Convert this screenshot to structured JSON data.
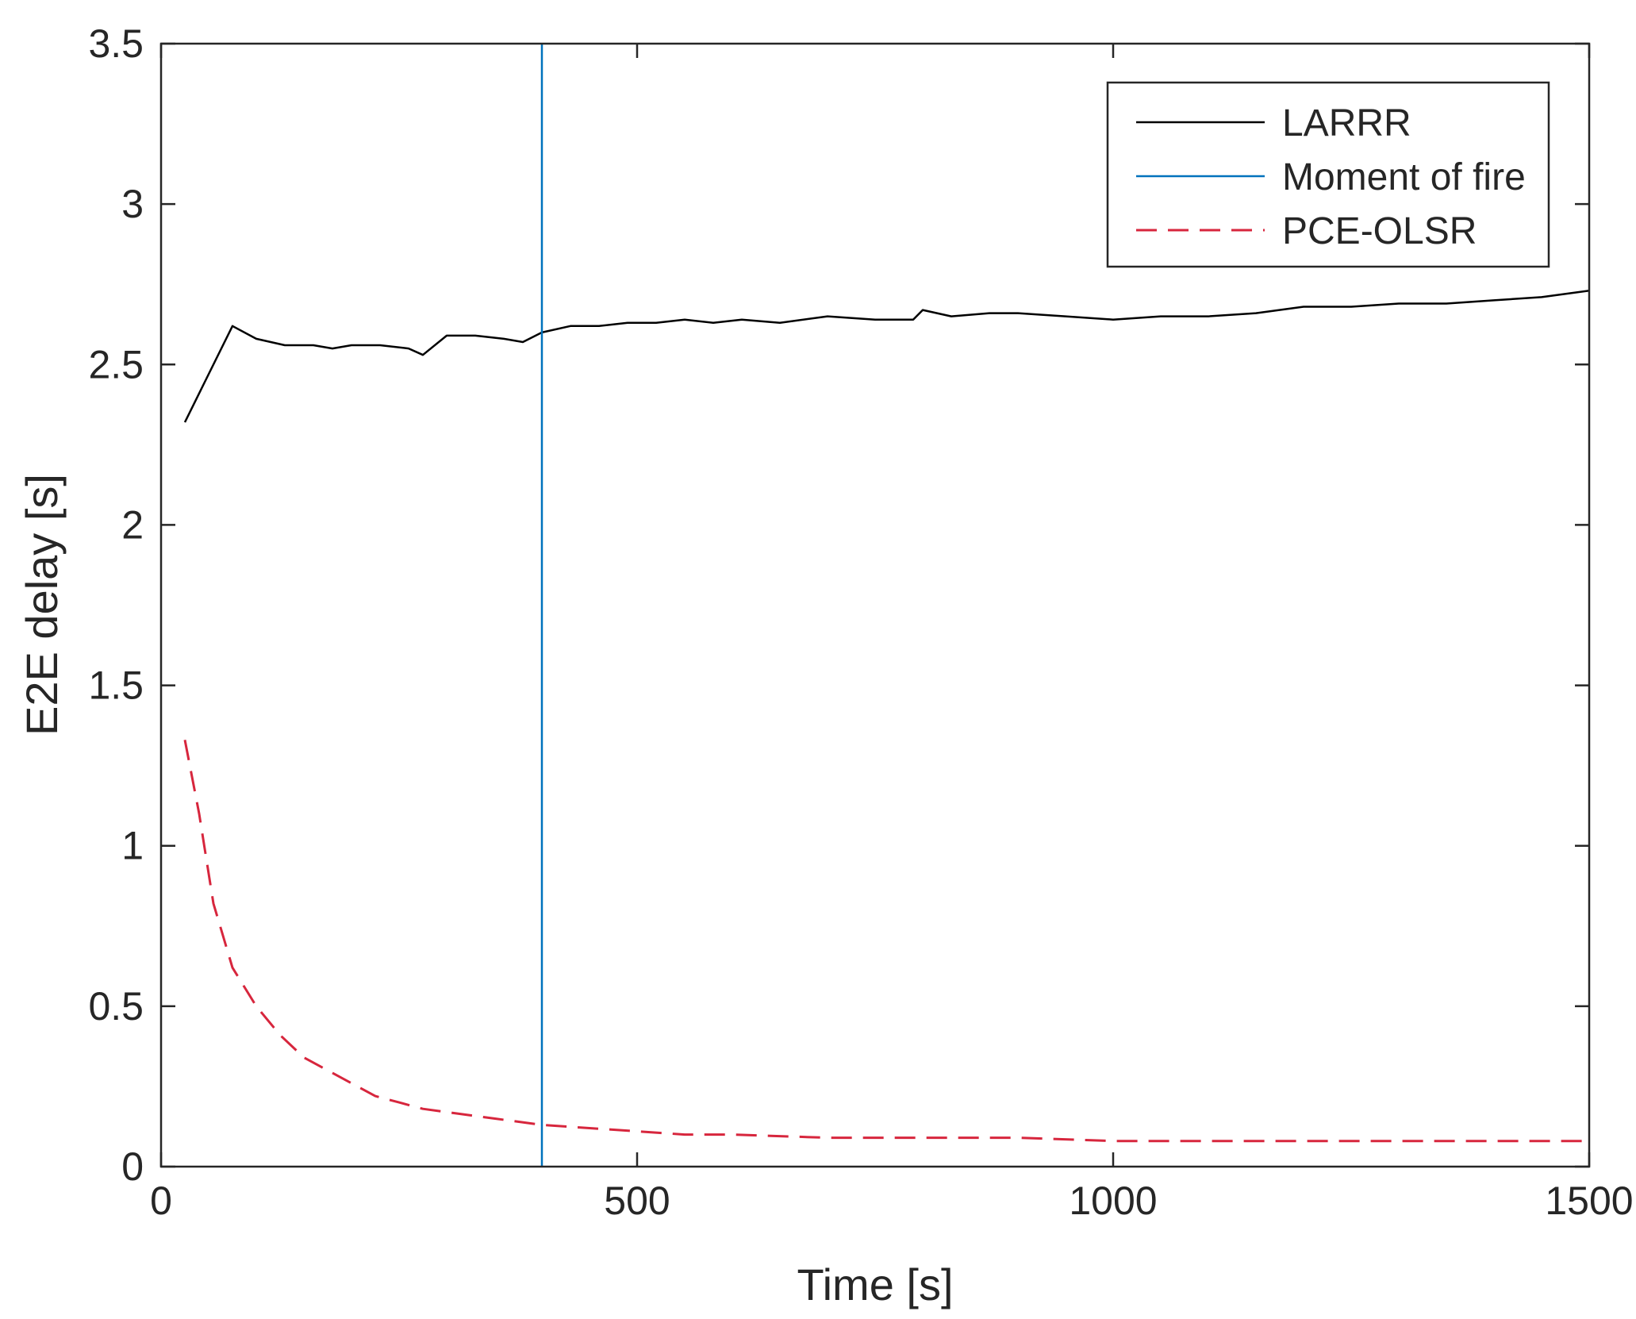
{
  "chart_data": {
    "type": "line",
    "title": "",
    "xlabel": "Time [s]",
    "ylabel": "E2E delay [s]",
    "xlim": [
      0,
      1500
    ],
    "ylim": [
      0,
      3.5
    ],
    "xticks": [
      0,
      500,
      1000,
      1500
    ],
    "xtick_labels": [
      "0",
      "500",
      "1000",
      "1500"
    ],
    "yticks": [
      0,
      0.5,
      1,
      1.5,
      2,
      2.5,
      3,
      3.5
    ],
    "ytick_labels": [
      "0",
      "0.5",
      "1",
      "1.5",
      "2",
      "2.5",
      "3",
      "3.5"
    ],
    "grid": false,
    "box": true,
    "legend_position": "top-right",
    "series": [
      {
        "name": "LARRR",
        "color": "#000000",
        "style": "solid",
        "x": [
          25,
          45,
          75,
          100,
          130,
          160,
          180,
          200,
          230,
          260,
          275,
          300,
          330,
          360,
          380,
          400,
          430,
          460,
          490,
          520,
          550,
          580,
          610,
          650,
          700,
          750,
          790,
          800,
          830,
          870,
          900,
          950,
          1000,
          1050,
          1100,
          1150,
          1200,
          1250,
          1300,
          1350,
          1400,
          1450,
          1500
        ],
        "y": [
          2.32,
          2.44,
          2.62,
          2.58,
          2.56,
          2.56,
          2.55,
          2.56,
          2.56,
          2.55,
          2.53,
          2.59,
          2.59,
          2.58,
          2.57,
          2.6,
          2.62,
          2.62,
          2.63,
          2.63,
          2.64,
          2.63,
          2.64,
          2.63,
          2.65,
          2.64,
          2.64,
          2.67,
          2.65,
          2.66,
          2.66,
          2.65,
          2.64,
          2.65,
          2.65,
          2.66,
          2.68,
          2.68,
          2.69,
          2.69,
          2.7,
          2.71,
          2.73
        ]
      },
      {
        "name": "Moment of fire",
        "color": "#0072BD",
        "style": "solid",
        "x": [
          400,
          400
        ],
        "y": [
          0,
          3.5
        ]
      },
      {
        "name": "PCE-OLSR",
        "color": "#D7263D",
        "style": "dashed",
        "x": [
          25,
          40,
          55,
          75,
          100,
          125,
          150,
          175,
          200,
          225,
          250,
          275,
          300,
          350,
          400,
          450,
          500,
          550,
          600,
          700,
          800,
          900,
          1000,
          1100,
          1200,
          1300,
          1400,
          1500
        ],
        "y": [
          1.33,
          1.1,
          0.82,
          0.62,
          0.5,
          0.41,
          0.34,
          0.3,
          0.26,
          0.22,
          0.2,
          0.18,
          0.17,
          0.15,
          0.13,
          0.12,
          0.11,
          0.1,
          0.1,
          0.09,
          0.09,
          0.09,
          0.08,
          0.08,
          0.08,
          0.08,
          0.08,
          0.08
        ]
      }
    ]
  }
}
